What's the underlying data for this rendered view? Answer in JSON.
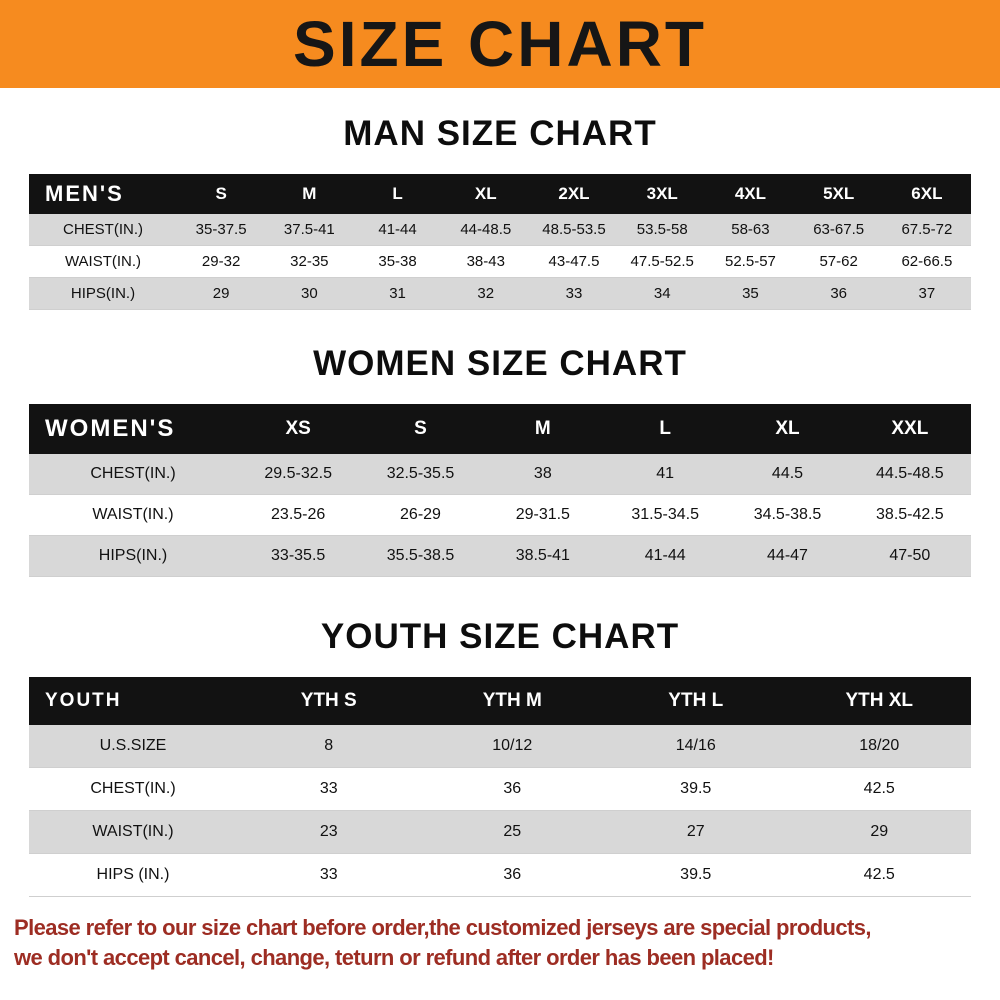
{
  "banner": {
    "title": "SIZE CHART"
  },
  "colors": {
    "banner-bg": "#f68b1f",
    "header-row-bg": "#121212",
    "header-row-text": "#ffffff",
    "row-alt-bg": "#d8d8d8",
    "notice-text": "#9d2d23"
  },
  "chart_data": [
    {
      "type": "table",
      "title": "MAN SIZE CHART",
      "header_label": "MEN'S",
      "columns": [
        "S",
        "M",
        "L",
        "XL",
        "2XL",
        "3XL",
        "4XL",
        "5XL",
        "6XL"
      ],
      "rows": [
        {
          "label": "CHEST(IN.)",
          "values": [
            "35-37.5",
            "37.5-41",
            "41-44",
            "44-48.5",
            "48.5-53.5",
            "53.5-58",
            "58-63",
            "63-67.5",
            "67.5-72"
          ]
        },
        {
          "label": "WAIST(IN.)",
          "values": [
            "29-32",
            "32-35",
            "35-38",
            "38-43",
            "43-47.5",
            "47.5-52.5",
            "52.5-57",
            "57-62",
            "62-66.5"
          ]
        },
        {
          "label": "HIPS(IN.)",
          "values": [
            "29",
            "30",
            "31",
            "32",
            "33",
            "34",
            "35",
            "36",
            "37"
          ]
        }
      ]
    },
    {
      "type": "table",
      "title": "WOMEN SIZE CHART",
      "header_label": "WOMEN'S",
      "columns": [
        "XS",
        "S",
        "M",
        "L",
        "XL",
        "XXL"
      ],
      "rows": [
        {
          "label": "CHEST(IN.)",
          "values": [
            "29.5-32.5",
            "32.5-35.5",
            "38",
            "41",
            "44.5",
            "44.5-48.5"
          ]
        },
        {
          "label": "WAIST(IN.)",
          "values": [
            "23.5-26",
            "26-29",
            "29-31.5",
            "31.5-34.5",
            "34.5-38.5",
            "38.5-42.5"
          ]
        },
        {
          "label": "HIPS(IN.)",
          "values": [
            "33-35.5",
            "35.5-38.5",
            "38.5-41",
            "41-44",
            "44-47",
            "47-50"
          ]
        }
      ]
    },
    {
      "type": "table",
      "title": "YOUTH SIZE CHART",
      "header_label": "YOUTH",
      "columns": [
        "YTH S",
        "YTH M",
        "YTH L",
        "YTH XL"
      ],
      "rows": [
        {
          "label": "U.S.SIZE",
          "values": [
            "8",
            "10/12",
            "14/16",
            "18/20"
          ]
        },
        {
          "label": "CHEST(IN.)",
          "values": [
            "33",
            "36",
            "39.5",
            "42.5"
          ]
        },
        {
          "label": "WAIST(IN.)",
          "values": [
            "23",
            "25",
            "27",
            "29"
          ]
        },
        {
          "label": "HIPS (IN.)",
          "values": [
            "33",
            "36",
            "39.5",
            "42.5"
          ]
        }
      ]
    }
  ],
  "footer": {
    "line1": "Please refer to our size chart before order,the customized jerseys are special products,",
    "line2": "we don't accept cancel, change, teturn or refund after order has been placed!"
  }
}
